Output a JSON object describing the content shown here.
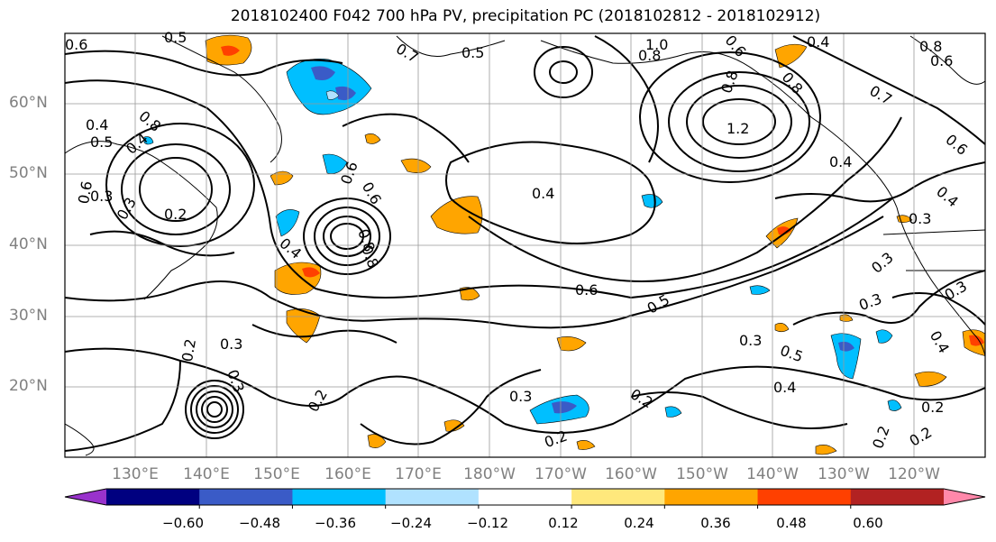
{
  "title": "2018102400 F042 700 hPa PV, precipitation PC (2018102812 - 2018102912)",
  "lat_labels": [
    "60°N",
    "50°N",
    "40°N",
    "30°N",
    "20°N"
  ],
  "lon_labels": [
    "130°E",
    "140°E",
    "150°E",
    "160°E",
    "170°E",
    "180°W",
    "170°W",
    "160°W",
    "150°W",
    "140°W",
    "130°W",
    "120°W"
  ],
  "contour_labels": [
    "0.6",
    "0.5",
    "0.7",
    "0.5",
    "1.0",
    "0.8",
    "0.6",
    "0.4",
    "0.8",
    "0.6",
    "0.7",
    "0.8",
    "0.6",
    "0.4",
    "0.5",
    "0.4",
    "0.8",
    "0.6",
    "0.3",
    "0.2",
    "0.4",
    "0.6",
    "0.8",
    "1.2",
    "0.4",
    "0.6",
    "0.4",
    "0.3",
    "0.8",
    "0.8",
    "0.4",
    "0.6",
    "0.5",
    "0.3",
    "0.3",
    "0.3",
    "0.3",
    "0.5",
    "0.4",
    "0.4",
    "0.3",
    "0.2",
    "0.3",
    "0.3",
    "0.2",
    "0.2",
    "0.2",
    "0.2",
    "0.3",
    "0.2",
    "0.2"
  ],
  "colorbar": {
    "colors": [
      "#9932cc",
      "#000080",
      "#3a5bc7",
      "#00bfff",
      "#b0e2ff",
      "#ffffff",
      "#ffe87c",
      "#ffa500",
      "#ff4000",
      "#b22222",
      "#ff88aa"
    ],
    "tick_labels": [
      "−0.60",
      "−0.48",
      "−0.36",
      "−0.24",
      "−0.12",
      "0.12",
      "0.24",
      "0.36",
      "0.48",
      "0.60"
    ]
  }
}
